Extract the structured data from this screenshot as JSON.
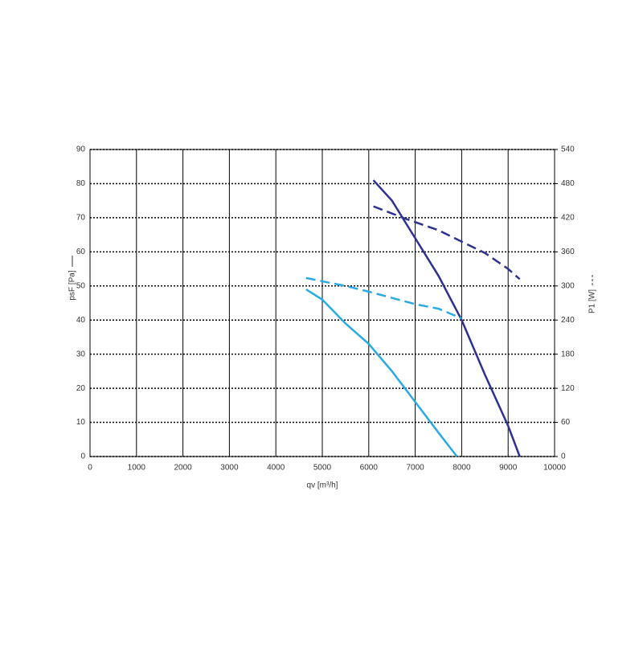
{
  "chart_data": {
    "type": "line",
    "x_label": "qv [m³/h]",
    "y_label": "psF [Pa]",
    "y2_label": "P1 [W]",
    "xlim": [
      0,
      10000
    ],
    "xticks": [
      0,
      1000,
      2000,
      3000,
      4000,
      5000,
      6000,
      7000,
      8000,
      9000,
      10000
    ],
    "ylim": [
      0,
      90
    ],
    "yticks": [
      0,
      10,
      20,
      30,
      40,
      50,
      60,
      70,
      80,
      90
    ],
    "y2lim": [
      0,
      540
    ],
    "y2ticks": [
      0,
      60,
      120,
      180,
      240,
      300,
      360,
      420,
      480,
      540
    ],
    "grid": true,
    "series": [
      {
        "color": "#2e3192",
        "dash": false,
        "x": [
          6100,
          6500,
          7000,
          7500,
          8000,
          8500,
          9000,
          9250
        ],
        "values": [
          81,
          75,
          64,
          53,
          40,
          24,
          9,
          0
        ]
      },
      {
        "color": "#2e3192",
        "dash": true,
        "axis": "y2",
        "x": [
          6100,
          6800,
          7500,
          8000,
          8500,
          9000,
          9250
        ],
        "values": [
          440,
          418,
          398,
          378,
          358,
          330,
          312
        ]
      },
      {
        "color": "#29abe2",
        "dash": false,
        "x": [
          4650,
          5000,
          5500,
          6000,
          6500,
          7000,
          7500,
          7900
        ],
        "values": [
          49,
          46,
          39,
          33,
          25,
          16,
          7,
          0
        ]
      },
      {
        "color": "#29abe2",
        "dash": true,
        "axis": "y2",
        "x": [
          4650,
          5500,
          6000,
          7000,
          7500,
          8000
        ],
        "values": [
          314,
          300,
          290,
          268,
          260,
          243
        ]
      }
    ]
  }
}
